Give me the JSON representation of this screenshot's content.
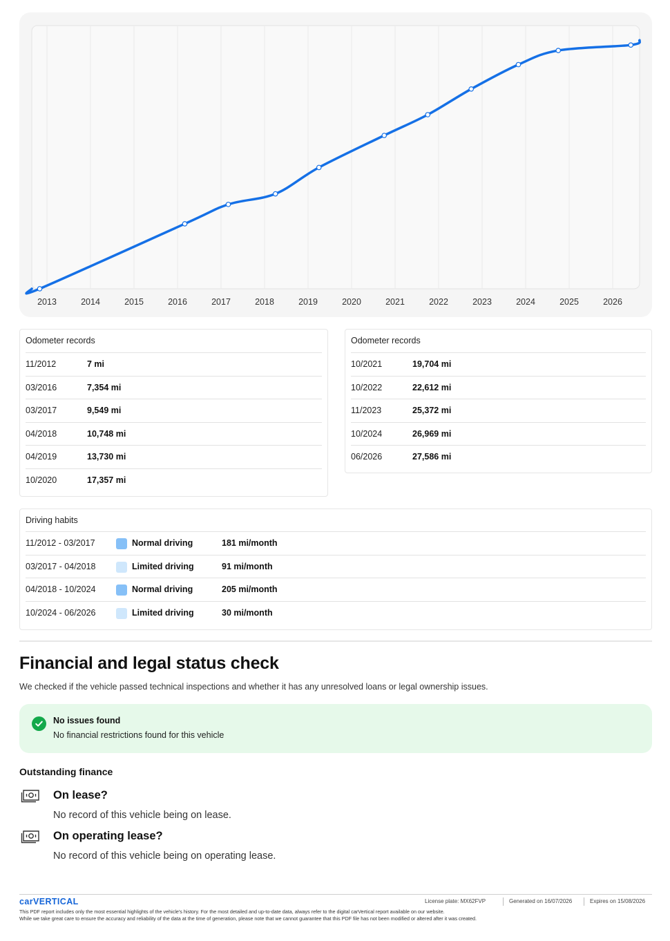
{
  "chart_data": {
    "type": "line",
    "x_tick_labels": [
      "2013",
      "2014",
      "2015",
      "2016",
      "2017",
      "2018",
      "2019",
      "2020",
      "2021",
      "2022",
      "2023",
      "2024",
      "2025",
      "2026"
    ],
    "highlighted_tick": "2026",
    "points": [
      {
        "date": "11/2012",
        "mi": 7
      },
      {
        "date": "03/2016",
        "mi": 7354
      },
      {
        "date": "03/2017",
        "mi": 9549
      },
      {
        "date": "04/2018",
        "mi": 10748
      },
      {
        "date": "04/2019",
        "mi": 13730
      },
      {
        "date": "10/2020",
        "mi": 17357
      },
      {
        "date": "10/2021",
        "mi": 19704
      },
      {
        "date": "10/2022",
        "mi": 22612
      },
      {
        "date": "11/2023",
        "mi": 25372
      },
      {
        "date": "10/2024",
        "mi": 26969
      },
      {
        "date": "06/2026",
        "mi": 27586
      }
    ],
    "line_color": "#1570e6",
    "grid": true
  },
  "odometer_left": {
    "title": "Odometer records",
    "rows": [
      {
        "date": "11/2012",
        "value": "7 mi"
      },
      {
        "date": "03/2016",
        "value": "7,354 mi"
      },
      {
        "date": "03/2017",
        "value": "9,549 mi"
      },
      {
        "date": "04/2018",
        "value": "10,748 mi"
      },
      {
        "date": "04/2019",
        "value": "13,730 mi"
      },
      {
        "date": "10/2020",
        "value": "17,357 mi"
      }
    ]
  },
  "odometer_right": {
    "title": "Odometer records",
    "rows": [
      {
        "date": "10/2021",
        "value": "19,704 mi"
      },
      {
        "date": "10/2022",
        "value": "22,612 mi"
      },
      {
        "date": "11/2023",
        "value": "25,372 mi"
      },
      {
        "date": "10/2024",
        "value": "26,969 mi"
      },
      {
        "date": "06/2026",
        "value": "27,586 mi"
      }
    ]
  },
  "driving_habits": {
    "title": "Driving habits",
    "colors": {
      "normal": "#86c0f7",
      "limited": "#cfe7fc"
    },
    "rows": [
      {
        "period": "11/2012 - 03/2017",
        "kind": "Normal driving",
        "type": "normal",
        "rate": "181 mi/month"
      },
      {
        "period": "03/2017 - 04/2018",
        "kind": "Limited driving",
        "type": "limited",
        "rate": "91 mi/month"
      },
      {
        "period": "04/2018 - 10/2024",
        "kind": "Normal driving",
        "type": "normal",
        "rate": "205 mi/month"
      },
      {
        "period": "10/2024 - 06/2026",
        "kind": "Limited driving",
        "type": "limited",
        "rate": "30 mi/month"
      }
    ]
  },
  "financial": {
    "title": "Financial and legal status check",
    "description": "We checked if the vehicle passed technical inspections and whether it has any unresolved loans or legal ownership issues.",
    "status": {
      "title": "No issues found",
      "subtitle": "No financial restrictions found for this vehicle",
      "icon": "check-icon",
      "color": "#14a94b"
    },
    "outstanding_title": "Outstanding finance",
    "items": [
      {
        "title": "On lease?",
        "desc": "No record of this vehicle being on lease.",
        "icon": "banknote-icon"
      },
      {
        "title": "On operating lease?",
        "desc": "No record of this vehicle being on operating lease.",
        "icon": "banknote-icon"
      }
    ]
  },
  "footer": {
    "logo": "carVERTICAL",
    "plate": "License plate:  MX62FVP",
    "generated": "Generated on  16/07/2026",
    "expires": "Expires on  15/08/2026",
    "line1": "This PDF report includes only the most essential highlights of the vehicle's history. For the most detailed and up-to-date data, always refer to the digital carVertical report available on our website.",
    "line2": "While we take great care to ensure the accuracy and reliability of the data at the time of generation, please note that we cannot guarantee that this PDF file has not been modified or altered after it was created."
  }
}
